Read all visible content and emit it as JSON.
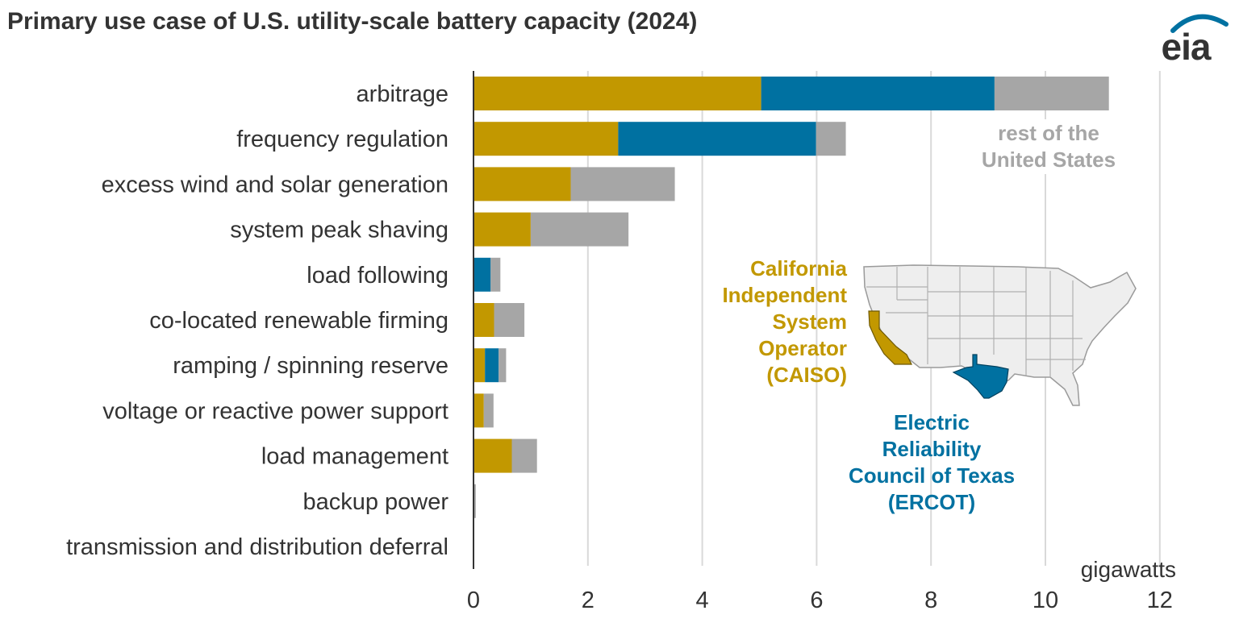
{
  "title": "Primary use case of U.S. utility-scale battery capacity (2024)",
  "logo": {
    "text": "eia"
  },
  "colors": {
    "caiso": "#c29800",
    "ercot": "#0071a1",
    "rest": "#a6a6a6",
    "grid": "#d9d9d9",
    "axis": "#333333"
  },
  "chart_data": {
    "type": "bar",
    "orientation": "horizontal",
    "stacked": true,
    "categories": [
      "arbitrage",
      "frequency regulation",
      "excess wind and solar generation",
      "system peak shaving",
      "load following",
      "co-located renewable firming",
      "ramping / spinning reserve",
      "voltage or reactive power support",
      "load management",
      "backup power",
      "transmission and distribution deferral"
    ],
    "series": [
      {
        "name": "California Independent System Operator (CAISO)",
        "color_key": "caiso",
        "values": [
          5.03,
          2.53,
          1.7,
          1.0,
          0.0,
          0.36,
          0.2,
          0.18,
          0.67,
          0.0,
          0.0
        ]
      },
      {
        "name": "Electric Reliability Council of Texas (ERCOT)",
        "color_key": "ercot",
        "values": [
          4.08,
          3.46,
          0.0,
          0.0,
          0.3,
          0.0,
          0.24,
          0.0,
          0.0,
          0.0,
          0.0
        ]
      },
      {
        "name": "rest of the United States",
        "color_key": "rest",
        "values": [
          2.0,
          0.52,
          1.82,
          1.71,
          0.17,
          0.53,
          0.13,
          0.17,
          0.44,
          0.04,
          0.01
        ]
      }
    ],
    "x_ticks": [
      0,
      2,
      4,
      6,
      8,
      10,
      12
    ],
    "xlim": [
      0,
      12
    ],
    "xlabel": "gigawatts",
    "grid": true,
    "annotations": {
      "rest": [
        "rest of the",
        "United States"
      ],
      "caiso": [
        "California",
        "Independent",
        "System",
        "Operator",
        "(CAISO)"
      ],
      "ercot": [
        "Electric",
        "Reliability",
        "Council of Texas",
        "(ERCOT)"
      ]
    }
  }
}
